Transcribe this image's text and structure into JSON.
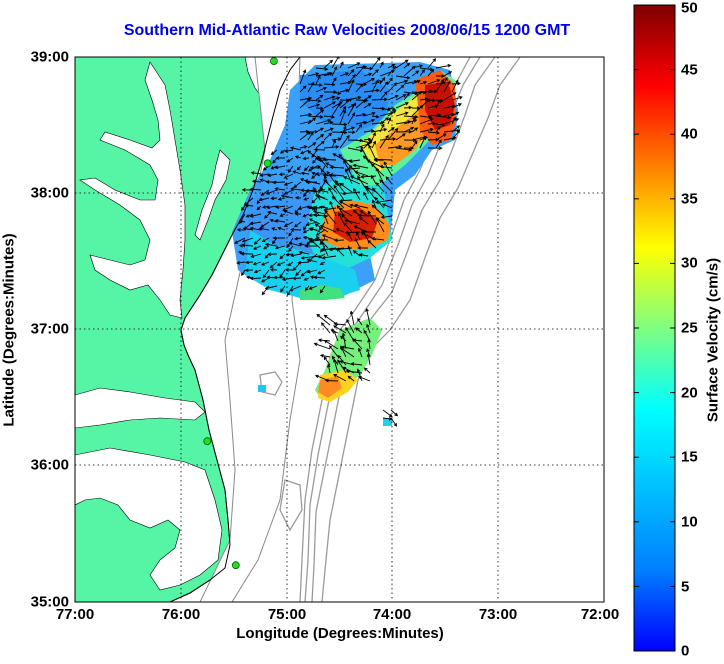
{
  "title": "Southern Mid-Atlantic Raw Velocities 2008/06/15 1200 GMT",
  "xlabel": "Longitude (Degrees:Minutes)",
  "ylabel": "Latitude (Degrees:Minutes)",
  "x_ticks": [
    "77:00",
    "76:00",
    "75:00",
    "74:00",
    "73:00",
    "72:00"
  ],
  "y_ticks": [
    "39:00",
    "38:00",
    "37:00",
    "36:00",
    "35:00"
  ],
  "colorbar": {
    "label": "Surface Velocity (cm/s)",
    "ticks": [
      "0",
      "5",
      "10",
      "15",
      "20",
      "25",
      "30",
      "35",
      "40",
      "45",
      "50"
    ],
    "min": 0,
    "max": 50,
    "colormap": "jet"
  },
  "map": {
    "lon_range": [
      -77,
      -72
    ],
    "lat_range": [
      35,
      39
    ],
    "land_color": "#55f5a5",
    "contour_color": "#999999",
    "grid": "dotted",
    "stations": [
      {
        "lon": -75.12,
        "lat": 38.97
      },
      {
        "lon": -75.18,
        "lat": 38.22
      },
      {
        "lon": -75.75,
        "lat": 36.18
      },
      {
        "lon": -75.48,
        "lat": 35.27
      }
    ]
  }
}
